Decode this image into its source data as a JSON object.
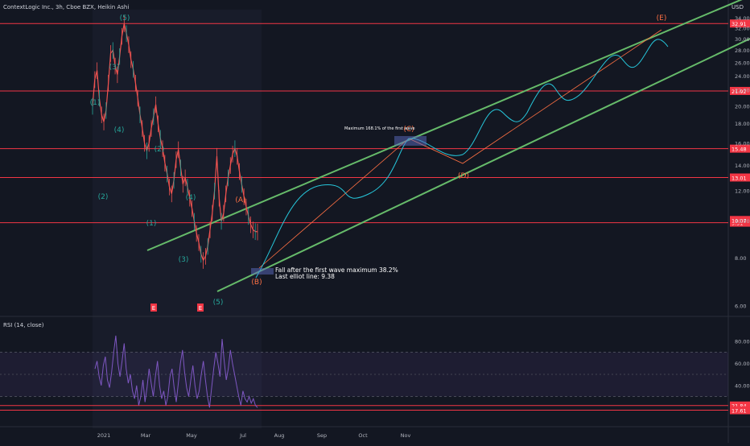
{
  "header": {
    "symbol_line": "ContextLogic Inc., 3h, Cboe BZX, Heikin Ashi",
    "currency": "USD"
  },
  "rsi_panel": {
    "label": "RSI (14, close)"
  },
  "colors": {
    "background": "#131722",
    "price_line": "#ef5350",
    "wave_label": "#26a69a",
    "corrective_label": "#ff7043",
    "channel": "#66bb6a",
    "projection": "#26c6da",
    "horizontal_level": "#f23645",
    "rsi_line": "#7e57c2"
  },
  "chart_data": [
    {
      "type": "line",
      "title": "",
      "series": [
        {
          "values_note": "",
          "x": [
            0,
            2,
            4,
            6,
            8,
            10,
            12,
            14,
            16,
            18,
            20,
            22,
            24,
            26,
            28,
            30,
            32,
            34,
            36,
            38,
            40,
            42,
            44,
            46,
            48,
            50,
            52,
            54,
            56,
            58,
            60,
            62,
            64,
            66,
            68,
            70,
            72,
            74,
            76,
            78,
            80,
            82,
            84,
            86,
            88,
            90,
            92,
            94,
            96,
            98,
            100,
            102,
            104,
            106,
            108,
            110,
            112,
            114,
            116,
            118,
            120,
            122,
            124,
            126,
            128,
            130,
            132,
            134,
            136,
            138,
            140,
            142,
            144,
            146,
            148,
            150,
            152,
            154,
            156,
            158,
            160,
            162,
            164,
            166,
            168,
            170,
            172,
            174,
            176,
            178,
            180,
            182,
            184,
            186,
            188,
            190,
            192,
            194,
            196,
            198,
            200
          ],
          "values": [
            20.0,
            23.5,
            24.8,
            21.0,
            19.0,
            18.2,
            19.5,
            23.0,
            27.5,
            28.0,
            25.5,
            24.2,
            27.0,
            30.5,
            32.9,
            31.0,
            29.0,
            26.5,
            25.0,
            23.0,
            21.0,
            19.0,
            17.5,
            16.0,
            15.3,
            16.0,
            17.5,
            18.8,
            20.2,
            18.0,
            16.5,
            15.5,
            14.2,
            13.3,
            12.3,
            11.8,
            12.8,
            14.5,
            15.4,
            13.8,
            12.5,
            13.0,
            12.3,
            11.5,
            10.8,
            10.0,
            9.3,
            8.8,
            8.2,
            7.9,
            8.1,
            8.6,
            9.5,
            10.5,
            12.0,
            14.8,
            11.5,
            10.0,
            10.5,
            11.8,
            13.0,
            14.0,
            15.0,
            15.5,
            14.8,
            13.5,
            12.5,
            11.6,
            10.9,
            10.3,
            9.8,
            9.5,
            9.4,
            9.38,
            9.4,
            9.5,
            9.6,
            9.7,
            9.8,
            9.9,
            10.0,
            10.0,
            10.0,
            10.0,
            10.0,
            10.0,
            10.0,
            10.0,
            10.0,
            10.0,
            10.0,
            10.0,
            10.0,
            10.0,
            10.0,
            10.0,
            10.0,
            10.0,
            10.0,
            10.0,
            10.0
          ]
        }
      ],
      "price_levels": [
        32.91,
        21.92,
        15.48,
        13.01,
        9.91
      ],
      "extra_level_labels": [
        "10.07"
      ],
      "y_ticks": [
        "34.00",
        "32.00",
        "30.00",
        "28.00",
        "26.00",
        "24.00",
        "22.00",
        "20.00",
        "18.00",
        "16.00",
        "14.00",
        "12.00",
        "10.00",
        "8.00",
        "6.00"
      ],
      "x_ticks": [
        "2021",
        "Mar",
        "May",
        "Jul",
        "Aug",
        "Sep",
        "Oct",
        "Nov"
      ],
      "wave_labels_impulse": [
        "(1)",
        "(2)",
        "(3)",
        "(4)",
        "(5)",
        "(1)",
        "(2)",
        "(3)",
        "(4)",
        "(5)"
      ],
      "wave_labels_corrective": [
        "(A)",
        "(B)",
        "(C)",
        "(D)",
        "(E)"
      ],
      "event_markers": [
        "E",
        "E"
      ],
      "annotations": [
        "Maximum 168.1% of the first wave",
        "Fall after the first wave maximum 38.2%",
        "Last elliot line: 9.38"
      ],
      "grid": false,
      "legend": "none"
    },
    {
      "type": "line",
      "title": "RSI (14, close)",
      "ylim": [
        10,
        90
      ],
      "y_ticks": [
        "80.00",
        "60.00",
        "40.00"
      ],
      "levels": [
        21.84,
        17.61
      ],
      "bands": [
        70,
        30
      ],
      "series": [
        {
          "values": [
            55,
            62,
            48,
            40,
            58,
            66,
            45,
            38,
            52,
            70,
            85,
            60,
            48,
            62,
            78,
            55,
            42,
            50,
            35,
            28,
            40,
            22,
            30,
            45,
            25,
            38,
            55,
            42,
            30,
            48,
            62,
            40,
            28,
            35,
            22,
            30,
            48,
            55,
            38,
            25,
            42,
            60,
            72,
            52,
            38,
            30,
            45,
            58,
            40,
            28,
            35,
            50,
            62,
            45,
            30,
            20,
            38,
            55,
            70,
            60,
            48,
            82,
            62,
            45,
            55,
            72,
            60,
            50,
            40,
            30,
            22,
            35,
            28,
            25,
            30,
            24,
            28,
            22,
            20
          ]
        }
      ]
    }
  ]
}
